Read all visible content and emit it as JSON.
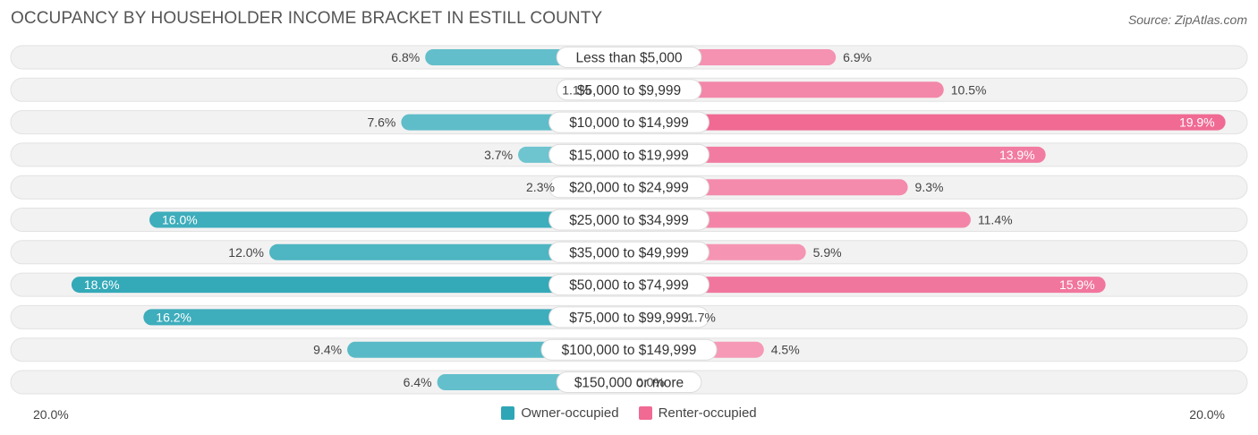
{
  "title": "OCCUPANCY BY HOUSEHOLDER INCOME BRACKET IN ESTILL COUNTY",
  "source": "Source: ZipAtlas.com",
  "colors": {
    "owner": "#2fa6b6",
    "owner_light": "#7ccbd5",
    "renter": "#f06a94",
    "renter_light": "#f7a6c0",
    "row_bg": "#eeeeee"
  },
  "chart_data": {
    "type": "bar",
    "orientation": "horizontal-diverging",
    "categories": [
      "Less than $5,000",
      "$5,000 to $9,999",
      "$10,000 to $14,999",
      "$15,000 to $19,999",
      "$20,000 to $24,999",
      "$25,000 to $34,999",
      "$35,000 to $49,999",
      "$50,000 to $74,999",
      "$75,000 to $99,999",
      "$100,000 to $149,999",
      "$150,000 or more"
    ],
    "series": [
      {
        "name": "Owner-occupied",
        "side": "left",
        "values": [
          6.8,
          1.1,
          7.6,
          3.7,
          2.3,
          16.0,
          12.0,
          18.6,
          16.2,
          9.4,
          6.4
        ],
        "labels": [
          "6.8%",
          "1.1%",
          "7.6%",
          "3.7%",
          "2.3%",
          "16.0%",
          "12.0%",
          "18.6%",
          "16.2%",
          "9.4%",
          "6.4%"
        ]
      },
      {
        "name": "Renter-occupied",
        "side": "right",
        "values": [
          6.9,
          10.5,
          19.9,
          13.9,
          9.3,
          11.4,
          5.9,
          15.9,
          1.7,
          4.5,
          0.0
        ],
        "labels": [
          "6.9%",
          "10.5%",
          "19.9%",
          "13.9%",
          "9.3%",
          "11.4%",
          "5.9%",
          "15.9%",
          "1.7%",
          "4.5%",
          "0.0%"
        ]
      }
    ],
    "xlim": [
      -20,
      20
    ],
    "axis_left_label": "20.0%",
    "axis_right_label": "20.0%",
    "legend": [
      "Owner-occupied",
      "Renter-occupied"
    ],
    "legend_position": "bottom-center"
  }
}
